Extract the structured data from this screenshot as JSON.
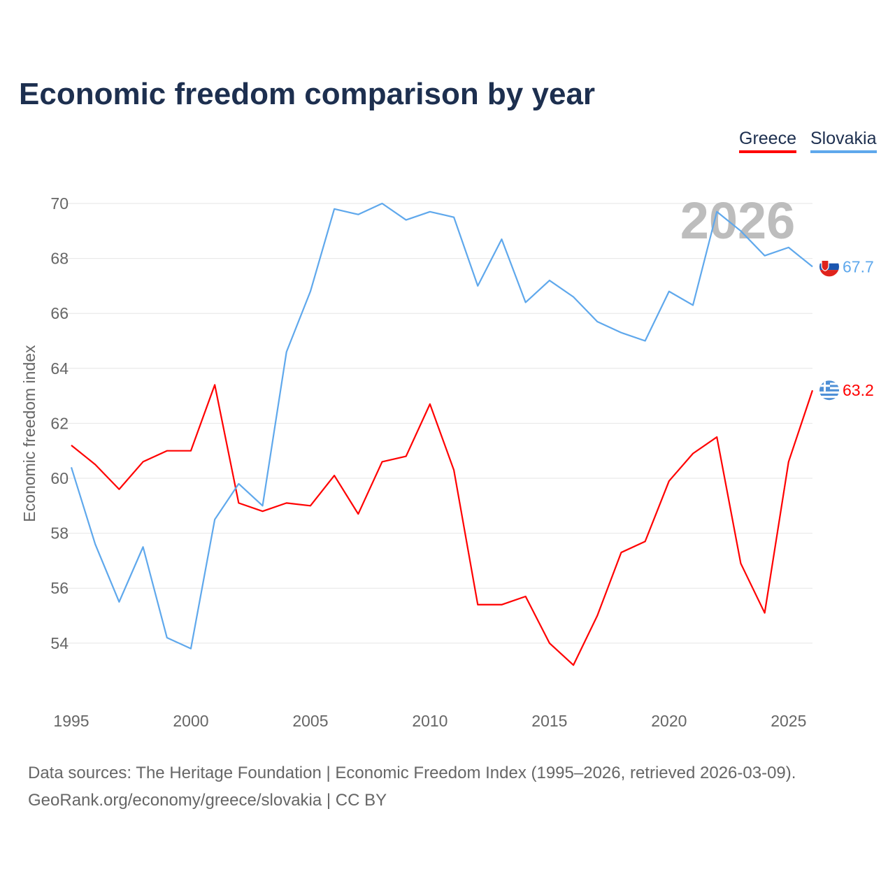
{
  "title": "Economic freedom comparison by year",
  "legend": [
    "Greece",
    "Slovakia"
  ],
  "watermark_year": "2026",
  "footer": {
    "line1": "Data sources: The Heritage Foundation | Economic Freedom Index (1995–2026, retrieved 2026-03-09).",
    "line2": "GeoRank.org/economy/greece/slovakia | CC BY"
  },
  "chart_data": {
    "type": "line",
    "title": "Economic freedom comparison by year",
    "xlabel": "",
    "ylabel": "Economic freedom index",
    "xlim": [
      1995,
      2026
    ],
    "ylim": [
      52,
      71
    ],
    "xticks": [
      1995,
      2000,
      2005,
      2010,
      2015,
      2020,
      2025
    ],
    "yticks": [
      54,
      56,
      58,
      60,
      62,
      64,
      66,
      68,
      70
    ],
    "grid": true,
    "legend_position": "top-right",
    "x": [
      1995,
      1996,
      1997,
      1998,
      1999,
      2000,
      2001,
      2002,
      2003,
      2004,
      2005,
      2006,
      2007,
      2008,
      2009,
      2010,
      2011,
      2012,
      2013,
      2014,
      2015,
      2016,
      2017,
      2018,
      2019,
      2020,
      2021,
      2022,
      2023,
      2024,
      2025,
      2026
    ],
    "series": [
      {
        "name": "Greece",
        "color": "#ff0000",
        "end_label": "63.2",
        "values": [
          61.2,
          60.5,
          59.6,
          60.6,
          61.0,
          61.0,
          63.4,
          59.1,
          58.8,
          59.1,
          59.0,
          60.1,
          58.7,
          60.6,
          60.8,
          62.7,
          60.3,
          55.4,
          55.4,
          55.7,
          54.0,
          53.2,
          55.0,
          57.3,
          57.7,
          59.9,
          60.9,
          61.5,
          56.9,
          55.1,
          60.6,
          63.2
        ]
      },
      {
        "name": "Slovakia",
        "color": "#5fa8ec",
        "end_label": "67.7",
        "values": [
          60.4,
          57.6,
          55.5,
          57.5,
          54.2,
          53.8,
          58.5,
          59.8,
          59.0,
          64.6,
          66.8,
          69.8,
          69.6,
          70.0,
          69.4,
          69.7,
          69.5,
          67.0,
          68.7,
          66.4,
          67.2,
          66.6,
          65.7,
          65.3,
          65.0,
          66.8,
          66.3,
          69.7,
          69.0,
          68.1,
          68.4,
          67.7
        ]
      }
    ]
  }
}
